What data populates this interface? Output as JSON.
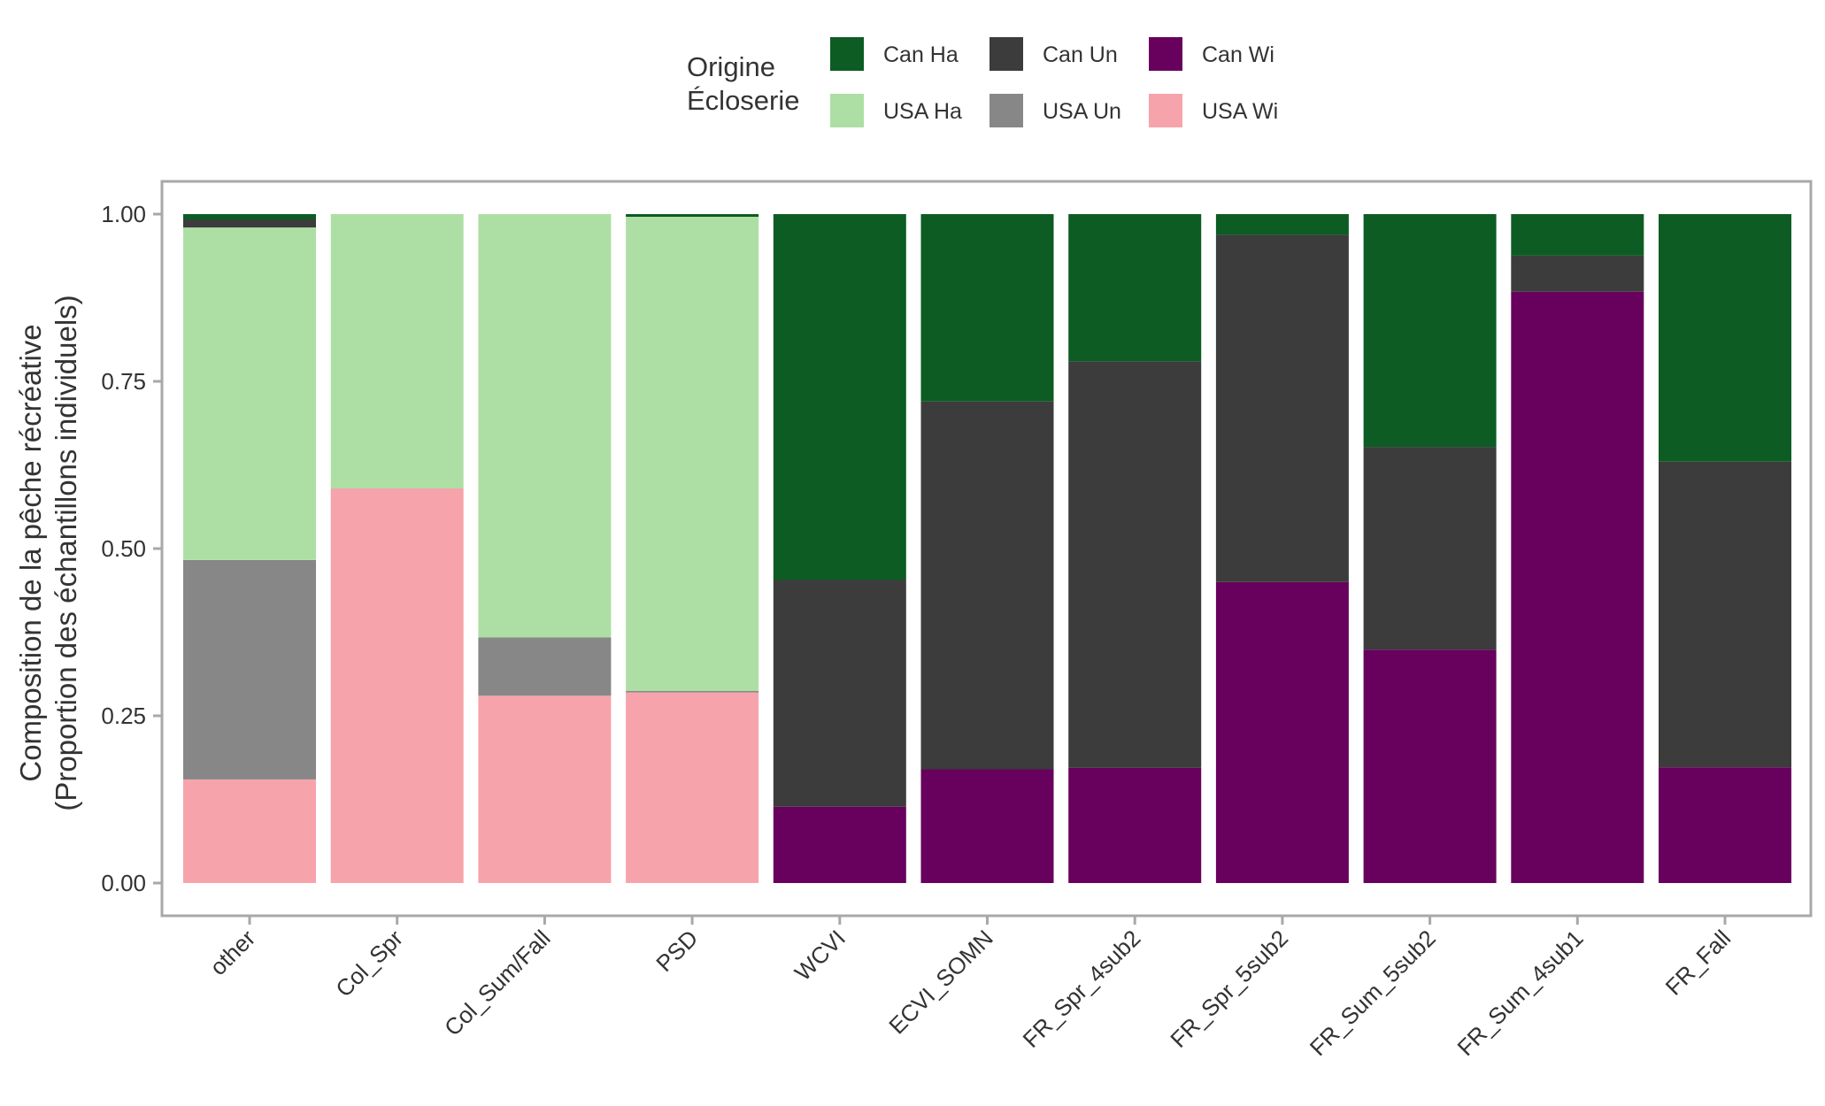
{
  "chart_data": {
    "type": "bar",
    "stacked": true,
    "title": "",
    "xlabel": "",
    "ylabel_line1": "Composition de la pêche récréative",
    "ylabel_line2": "(Proportion des échantillons individuels)",
    "ylim": [
      0,
      1
    ],
    "yticks": [
      0,
      0.25,
      0.5,
      0.75,
      1
    ],
    "ytick_labels": [
      "0.00",
      "0.25",
      "0.50",
      "0.75",
      "1.00"
    ],
    "grid": false,
    "legend": {
      "placement": "top",
      "title_line1": "Origine",
      "title_line2": "Écloserie"
    },
    "categories": [
      "other",
      "Col_Spr",
      "Col_Sum/Fall",
      "PSD",
      "WCVI",
      "ECVI_SOMN",
      "FR_Spr_4sub2",
      "FR_Spr_5sub2",
      "FR_Sum_5sub2",
      "FR_Sum_4sub1",
      "FR_Fall"
    ],
    "series": [
      {
        "name": "USA Wi",
        "color": "#f7a3ab",
        "values": [
          0.155,
          0.59,
          0.28,
          0.285,
          0,
          0,
          0,
          0,
          0,
          0,
          0
        ]
      },
      {
        "name": "USA Un",
        "color": "#878787",
        "values": [
          0.328,
          0,
          0.087,
          0.002,
          0,
          0,
          0,
          0,
          0,
          0,
          0
        ]
      },
      {
        "name": "USA Ha",
        "color": "#addfa4",
        "values": [
          0.497,
          0.41,
          0.633,
          0.709,
          0,
          0,
          0,
          0,
          0,
          0,
          0
        ]
      },
      {
        "name": "Can Wi",
        "color": "#67015d",
        "values": [
          0,
          0,
          0,
          0,
          0.114,
          0.17,
          0.172,
          0.45,
          0.349,
          0.884,
          0.173
        ]
      },
      {
        "name": "Can Un",
        "color": "#3c3c3c",
        "values": [
          0.012,
          0,
          0,
          0,
          0.339,
          0.55,
          0.608,
          0.519,
          0.303,
          0.054,
          0.457
        ]
      },
      {
        "name": "Can Ha",
        "color": "#0c5c24",
        "values": [
          0.008,
          0,
          0,
          0.004,
          0.547,
          0.28,
          0.22,
          0.031,
          0.348,
          0.062,
          0.37
        ]
      }
    ],
    "legend_order": [
      "Can Ha",
      "Can Un",
      "Can Wi",
      "USA Ha",
      "USA Un",
      "USA Wi"
    ]
  }
}
